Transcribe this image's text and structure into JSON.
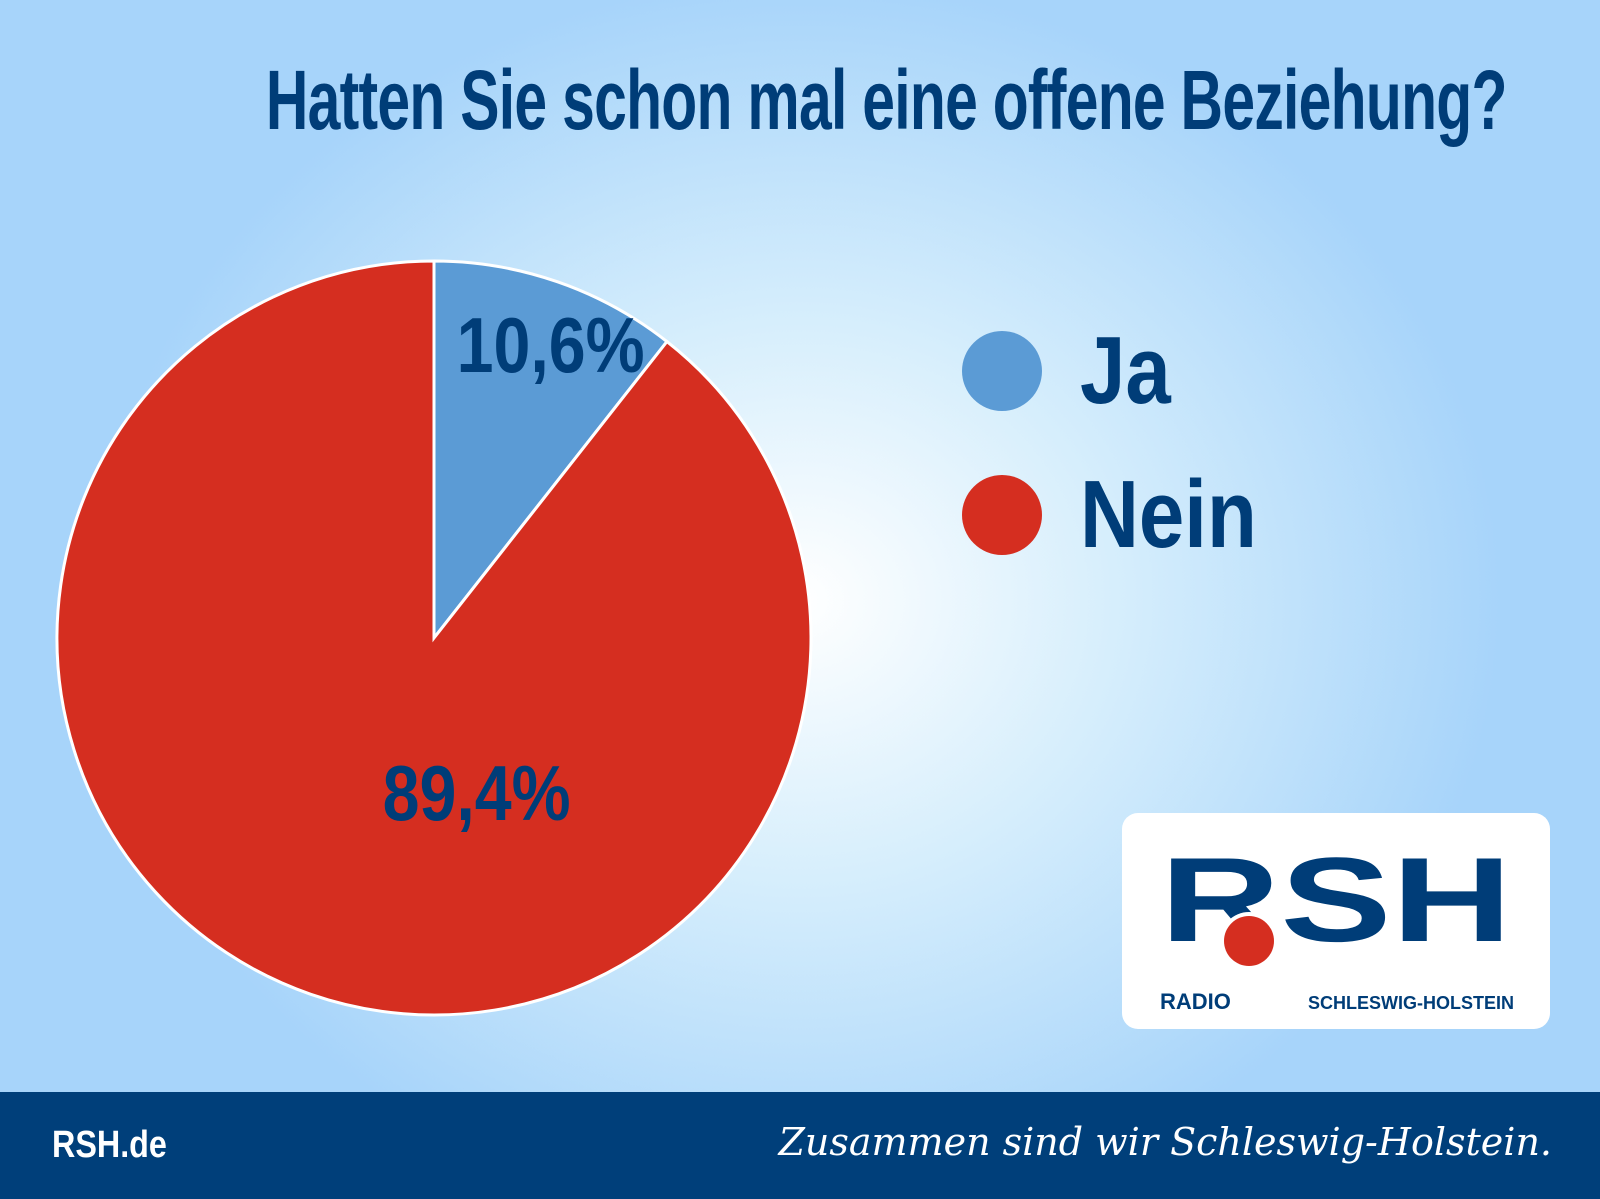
{
  "title": "Hatten Sie schon mal eine offene Beziehung?",
  "chart_data": {
    "type": "pie",
    "title": "Hatten Sie schon mal eine offene Beziehung?",
    "categories": [
      "Ja",
      "Nein"
    ],
    "values": [
      10.6,
      89.4
    ],
    "labels": [
      "10,6%",
      "89,4%"
    ],
    "colors": [
      "#5b9bd5",
      "#d52e20"
    ],
    "legend": "right"
  },
  "legend": [
    {
      "label": "Ja",
      "color": "#5b9bd5"
    },
    {
      "label": "Nein",
      "color": "#d52e20"
    }
  ],
  "logo": {
    "main": "RSH",
    "left": "RADIO",
    "right": "SCHLESWIG-HOLSTEIN"
  },
  "footer": {
    "site": "RSH.de",
    "slogan": "Zusammen sind wir Schleswig-Holstein."
  }
}
